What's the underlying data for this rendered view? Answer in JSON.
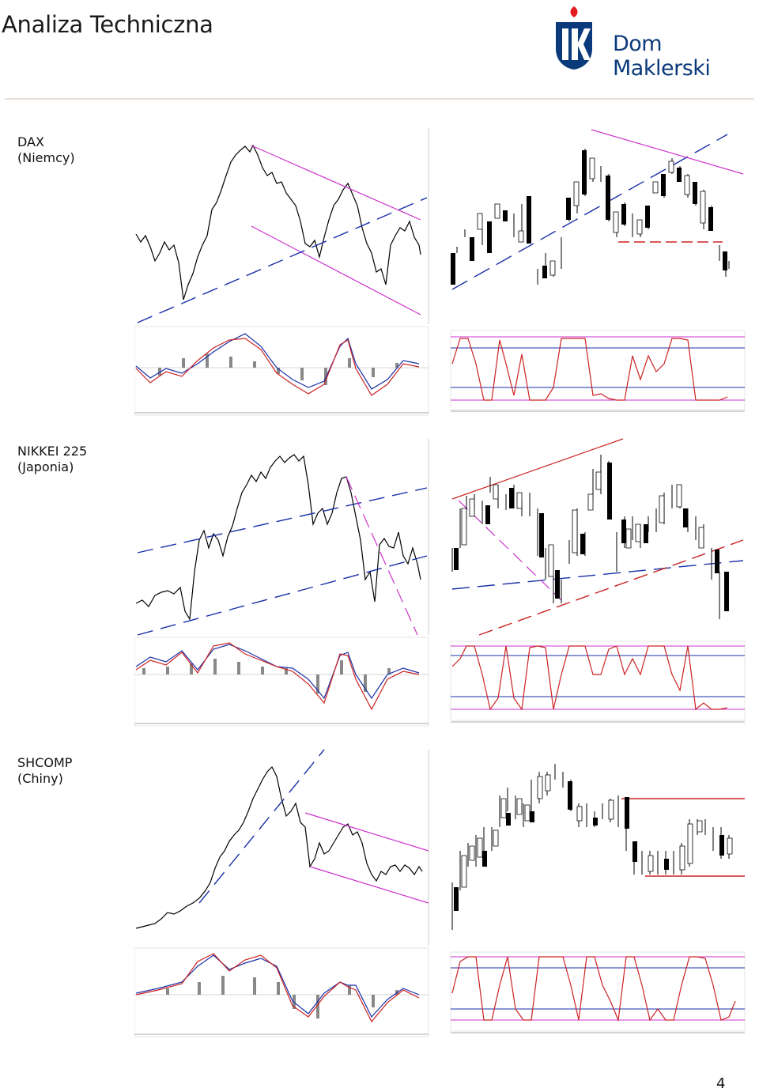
{
  "header": {
    "title": "Analiza Techniczna",
    "brand": "Dom Maklerski",
    "brand_mark": "PKO"
  },
  "sections": [
    {
      "id": "dax",
      "name": "DAX",
      "country": "(Niemcy)"
    },
    {
      "id": "nikkei",
      "name": "NIKKEI 225",
      "country": "(Japonia)"
    },
    {
      "id": "shcomp",
      "name": "SHCOMP",
      "country": "(Chiny)"
    }
  ],
  "colors": {
    "price": "#000000",
    "trend_magenta": "#cc33cc",
    "trend_blue_dashed": "#1a2fa8",
    "support_red": "#cc2222",
    "macd_signal_red": "#cc2222",
    "macd_blue": "#1a2fa8",
    "histogram": "#888888"
  },
  "footer": {
    "page_number": "4"
  }
}
